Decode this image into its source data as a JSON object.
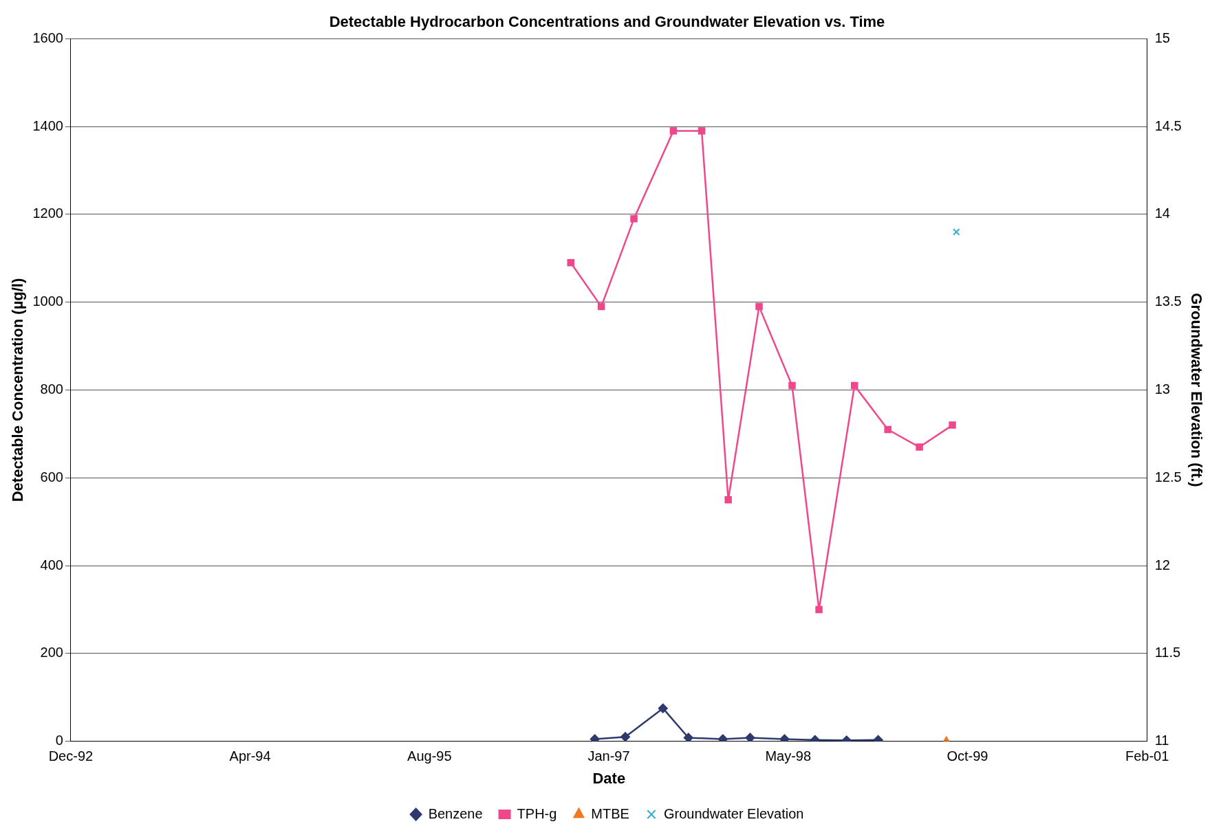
{
  "chart_data": {
    "type": "line",
    "title": "Detectable Hydrocarbon Concentrations and Groundwater Elevation vs. Time",
    "xlabel": "Date",
    "ylabel": "Detectable Concentration (µg/l)",
    "y2label": "Groundwater Elevation (ft.)",
    "xlim": [
      "1992-12-01",
      "2001-02-18"
    ],
    "xticks": [
      {
        "value": "1992-12-01",
        "label": "Dec-92"
      },
      {
        "value": "1994-04-15",
        "label": "Apr-94"
      },
      {
        "value": "1995-08-28",
        "label": "Aug-95"
      },
      {
        "value": "1997-01-09",
        "label": "Jan-97"
      },
      {
        "value": "1998-05-24",
        "label": "May-98"
      },
      {
        "value": "1999-10-06",
        "label": "Oct-99"
      },
      {
        "value": "2001-02-18",
        "label": "Feb-01"
      }
    ],
    "ylim": [
      0,
      1600
    ],
    "yticks": [
      0,
      200,
      400,
      600,
      800,
      1000,
      1200,
      1400,
      1600
    ],
    "y2lim": [
      11,
      15
    ],
    "y2ticks": [
      11,
      11.5,
      12,
      12.5,
      13,
      13.5,
      14,
      14.5,
      15
    ],
    "grid": "y",
    "legend": "bottom",
    "series": [
      {
        "name": "Benzene",
        "color": "#2e3a6e",
        "marker": "diamond",
        "x": [
          "1996-12-01",
          "1997-02-24",
          "1997-06-09",
          "1997-08-19",
          "1997-11-23",
          "1998-02-07",
          "1998-05-14",
          "1998-08-07",
          "1998-11-03",
          "1999-01-30"
        ],
        "values": [
          5,
          10,
          75,
          8,
          5,
          8,
          5,
          3,
          2,
          3
        ]
      },
      {
        "name": "TPH-g",
        "color": "#f0478c",
        "marker": "square",
        "x": [
          "1996-09-25",
          "1996-12-19",
          "1997-03-20",
          "1997-07-08",
          "1997-09-25",
          "1997-12-08",
          "1998-03-04",
          "1998-06-04",
          "1998-08-18",
          "1998-11-25",
          "1999-02-26",
          "1999-05-25",
          "1999-08-25"
        ],
        "values": [
          1090,
          990,
          1190,
          1390,
          1390,
          550,
          990,
          810,
          300,
          810,
          710,
          670,
          720
        ]
      },
      {
        "name": "MTBE",
        "color": "#f07820",
        "marker": "triangle",
        "x": [
          "1999-08-08"
        ],
        "values": [
          0
        ]
      },
      {
        "name": "Groundwater Elevation",
        "color": "#30b0d8",
        "marker": "cross",
        "axis": "y2",
        "x": [
          "1999-09-05"
        ],
        "values": [
          13.9
        ]
      }
    ]
  }
}
